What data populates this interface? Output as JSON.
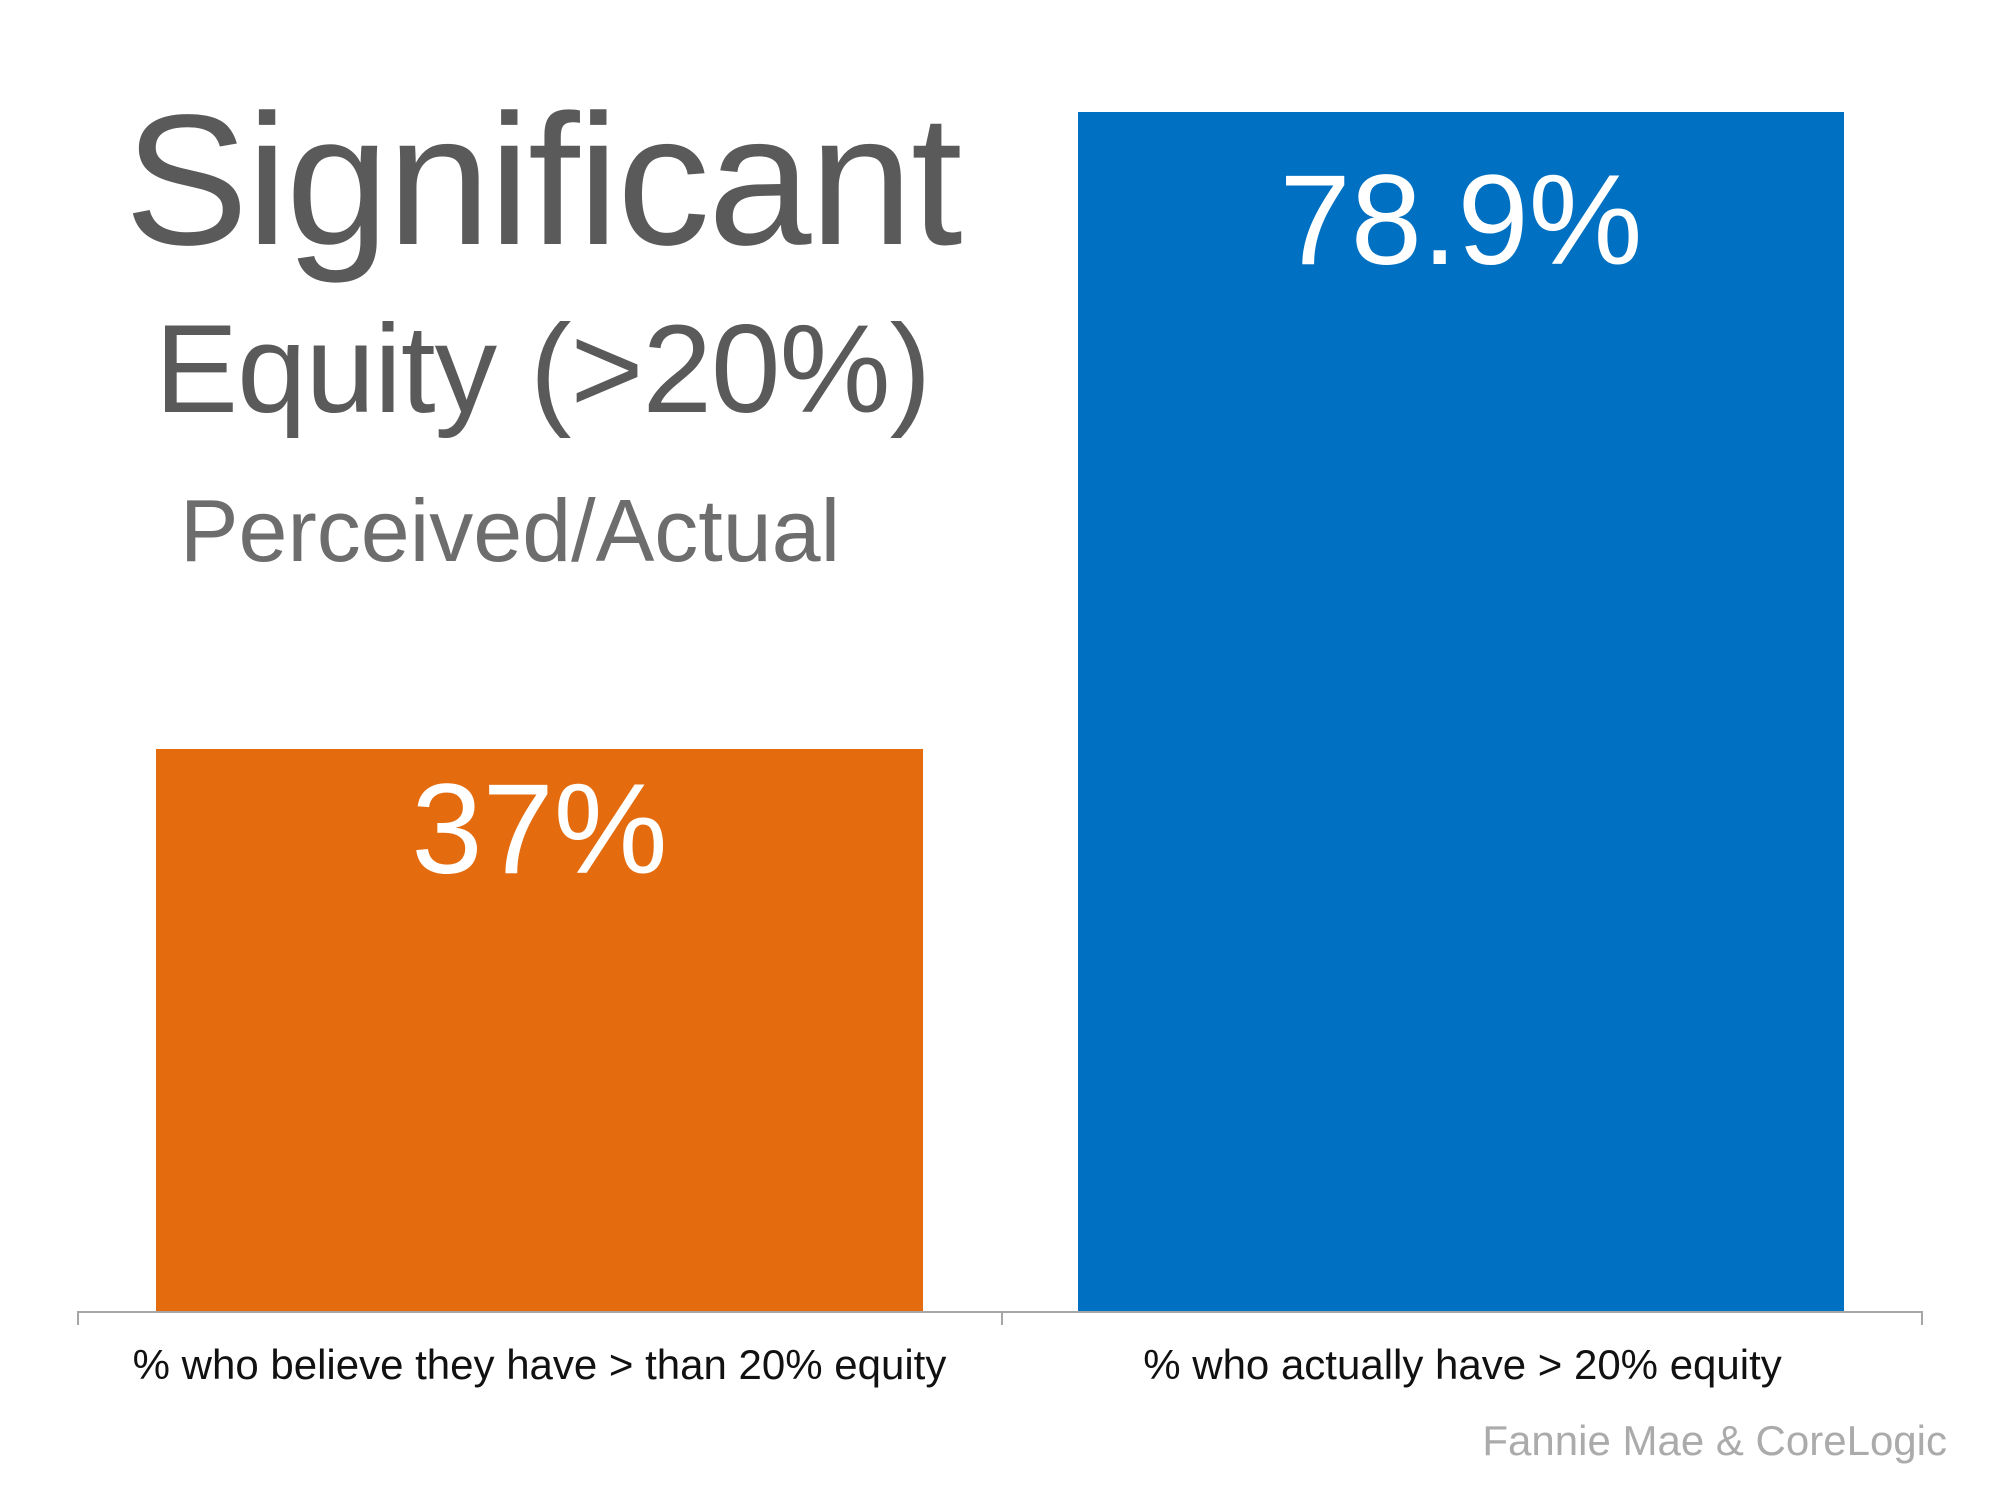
{
  "chart_data": {
    "type": "bar",
    "title_line1": "Significant",
    "title_line2": "Equity (>20%)",
    "subtitle": "Perceived/Actual",
    "categories": [
      "% who believe they have > than 20% equity",
      "% who actually have > 20% equity"
    ],
    "values": [
      37,
      78.9
    ],
    "value_labels": [
      "37%",
      "78.9%"
    ],
    "colors": [
      "#E46C0E",
      "#0071C2"
    ],
    "value_label_color": "#FFFFFF",
    "title_color": "#5A5A5A",
    "axis_color": "#A6A6A6",
    "ylim": [
      0,
      86
    ],
    "grid": false,
    "legend": false,
    "value_label_position": "inside-top",
    "source": "Fannie Mae & CoreLogic"
  }
}
